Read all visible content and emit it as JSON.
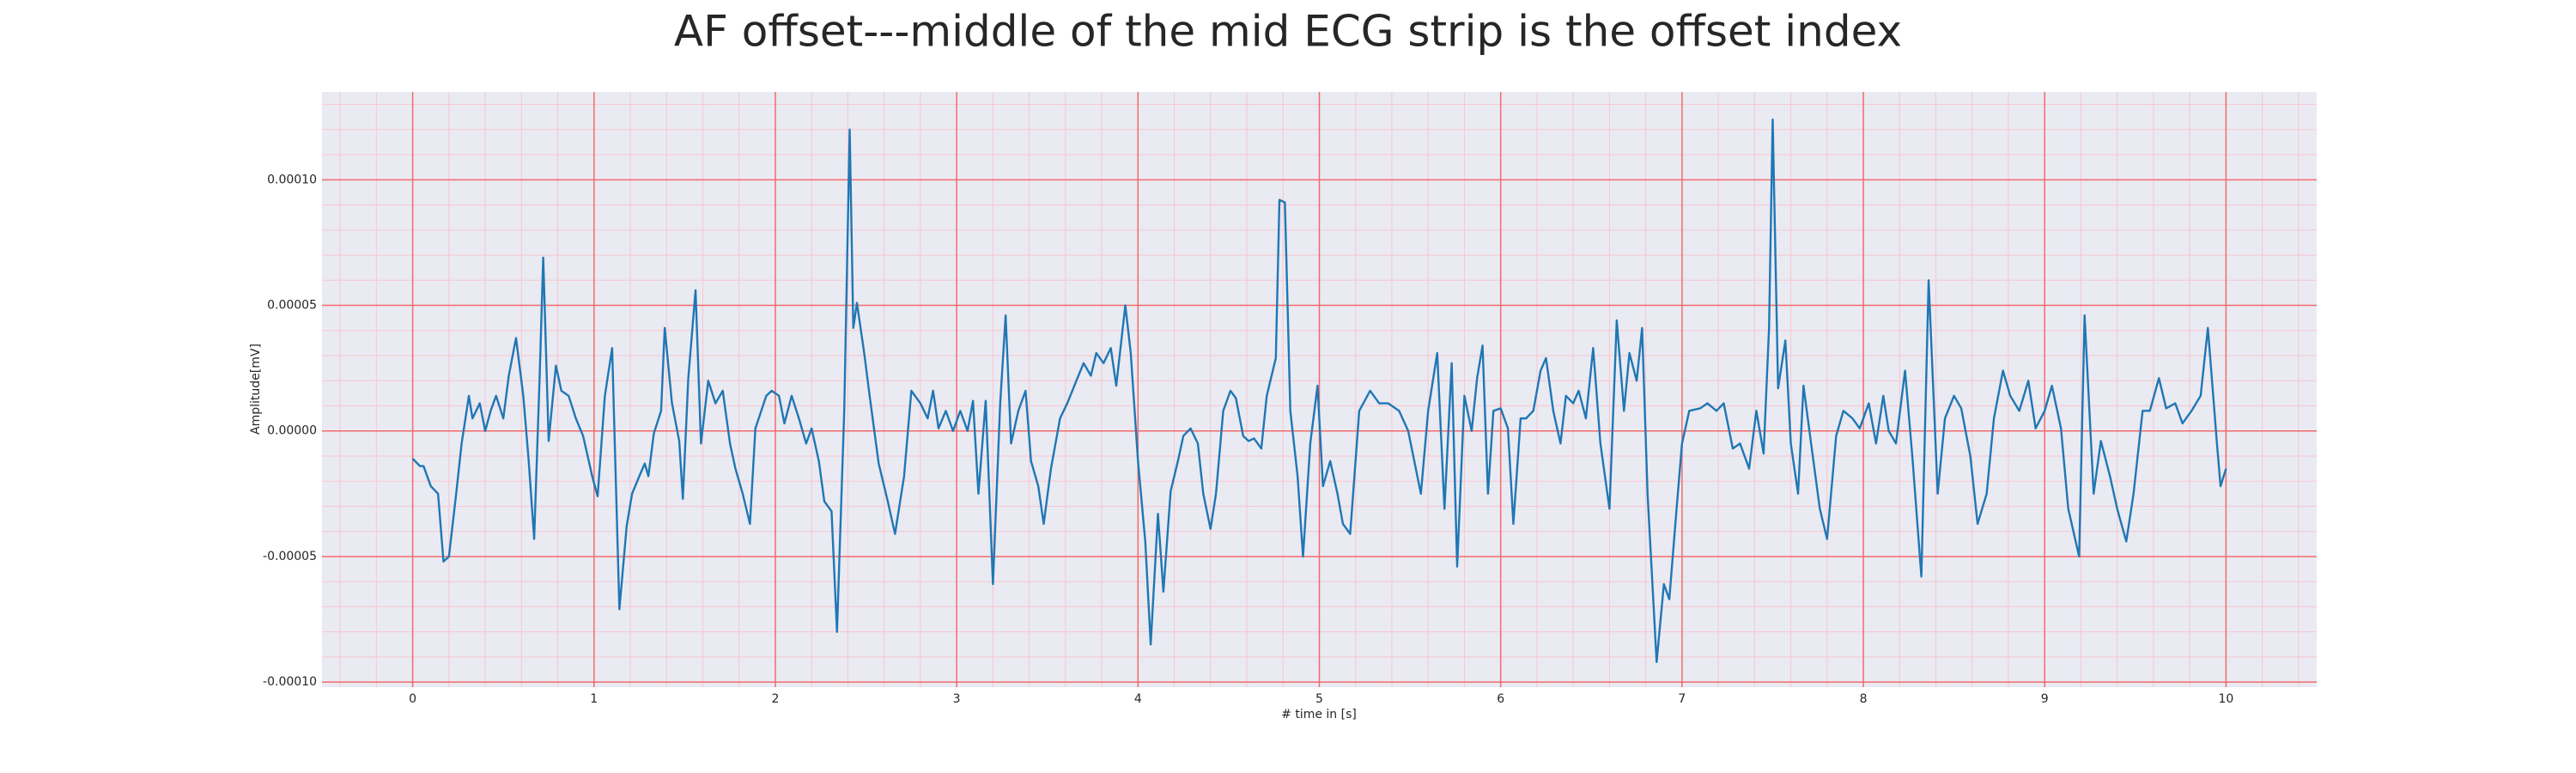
{
  "chart_data": {
    "type": "line",
    "title": "AF offset---middle of the mid ECG strip is the offset index",
    "x_label": "# time in [s]",
    "y_label": "Amplitude[mV]",
    "xlim": [
      -0.5,
      10.5
    ],
    "ylim": [
      -0.000102,
      0.000135
    ],
    "xticks": [
      0,
      1,
      2,
      3,
      4,
      5,
      6,
      7,
      8,
      9,
      10
    ],
    "yticks": [
      {
        "value": -0.0001,
        "label": "-0.00010"
      },
      {
        "value": -5e-05,
        "label": "-0.00005"
      },
      {
        "value": 0,
        "label": "0.00000"
      },
      {
        "value": 5e-05,
        "label": "0.00005"
      },
      {
        "value": 0.0001,
        "label": "0.00010"
      }
    ],
    "minor_xticks": [
      -0.4,
      -0.2,
      0.2,
      0.4,
      0.6,
      0.8,
      1.2,
      1.4,
      1.6,
      1.8,
      2.2,
      2.4,
      2.6,
      2.8,
      3.2,
      3.4,
      3.6,
      3.8,
      4.2,
      4.4,
      4.6,
      4.8,
      5.2,
      5.4,
      5.6,
      5.8,
      6.2,
      6.4,
      6.6,
      6.8,
      7.2,
      7.4,
      7.6,
      7.8,
      8.2,
      8.4,
      8.6,
      8.8,
      9.2,
      9.4,
      9.6,
      9.8,
      10.2,
      10.4
    ],
    "minor_yticks": [
      -9e-05,
      -8e-05,
      -7e-05,
      -6e-05,
      -4e-05,
      -3e-05,
      -2e-05,
      -1e-05,
      1e-05,
      2e-05,
      3e-05,
      4e-05,
      6e-05,
      7e-05,
      8e-05,
      9e-05,
      0.00011,
      0.00012,
      0.00013
    ],
    "grid": true,
    "background": "#eaeaf2",
    "grid_color": "#f26b6b",
    "minor_grid_color": "#f7c6cf",
    "x": [
      0,
      0.04,
      0.06,
      0.1,
      0.14,
      0.17,
      0.2,
      0.24,
      0.27,
      0.31,
      0.33,
      0.37,
      0.4,
      0.43,
      0.46,
      0.5,
      0.53,
      0.57,
      0.61,
      0.64,
      0.67,
      0.7,
      0.72,
      0.75,
      0.79,
      0.82,
      0.86,
      0.9,
      0.94,
      0.99,
      1.02,
      1.06,
      1.1,
      1.14,
      1.18,
      1.21,
      1.25,
      1.28,
      1.3,
      1.33,
      1.37,
      1.39,
      1.43,
      1.47,
      1.49,
      1.52,
      1.56,
      1.59,
      1.63,
      1.67,
      1.71,
      1.75,
      1.78,
      1.82,
      1.86,
      1.89,
      1.95,
      1.98,
      2.02,
      2.05,
      2.09,
      2.13,
      2.17,
      2.2,
      2.24,
      2.27,
      2.31,
      2.34,
      2.38,
      2.41,
      2.43,
      2.45,
      2.49,
      2.52,
      2.57,
      2.62,
      2.66,
      2.71,
      2.75,
      2.8,
      2.84,
      2.87,
      2.9,
      2.94,
      2.98,
      3.02,
      3.06,
      3.09,
      3.12,
      3.16,
      3.2,
      3.24,
      3.27,
      3.3,
      3.34,
      3.38,
      3.41,
      3.45,
      3.48,
      3.52,
      3.57,
      3.61,
      3.66,
      3.7,
      3.74,
      3.77,
      3.81,
      3.85,
      3.88,
      3.93,
      3.96,
      4.0,
      4.04,
      4.07,
      4.11,
      4.14,
      4.18,
      4.22,
      4.25,
      4.29,
      4.33,
      4.36,
      4.4,
      4.43,
      4.47,
      4.51,
      4.54,
      4.58,
      4.61,
      4.64,
      4.68,
      4.71,
      4.76,
      4.78,
      4.81,
      4.84,
      4.88,
      4.91,
      4.95,
      4.99,
      5.02,
      5.06,
      5.1,
      5.13,
      5.17,
      5.22,
      5.28,
      5.33,
      5.38,
      5.44,
      5.49,
      5.56,
      5.6,
      5.65,
      5.69,
      5.73,
      5.76,
      5.8,
      5.84,
      5.87,
      5.9,
      5.93,
      5.96,
      6.0,
      6.04,
      6.07,
      6.11,
      6.14,
      6.18,
      6.22,
      6.25,
      6.29,
      6.33,
      6.36,
      6.4,
      6.43,
      6.47,
      6.51,
      6.55,
      6.6,
      6.64,
      6.68,
      6.71,
      6.75,
      6.78,
      6.81,
      6.86,
      6.9,
      6.93,
      6.97,
      7.0,
      7.04,
      7.1,
      7.14,
      7.19,
      7.23,
      7.28,
      7.32,
      7.37,
      7.41,
      7.45,
      7.48,
      7.5,
      7.53,
      7.57,
      7.6,
      7.64,
      7.67,
      7.71,
      7.76,
      7.8,
      7.85,
      7.89,
      7.94,
      7.98,
      8.03,
      8.07,
      8.11,
      8.14,
      8.18,
      8.23,
      8.27,
      8.32,
      8.36,
      8.41,
      8.45,
      8.5,
      8.54,
      8.59,
      8.63,
      8.68,
      8.72,
      8.77,
      8.81,
      8.86,
      8.91,
      8.95,
      9.0,
      9.04,
      9.09,
      9.13,
      9.19,
      9.22,
      9.27,
      9.31,
      9.36,
      9.4,
      9.45,
      9.49,
      9.54,
      9.58,
      9.63,
      9.67,
      9.72,
      9.76,
      9.81,
      9.86,
      9.9,
      9.95,
      9.97,
      10.0
    ],
    "series": [
      {
        "name": "ECG",
        "color": "#1f77b4",
        "values": [
          -1.1e-05,
          -1.4e-05,
          -1.4e-05,
          -2.2e-05,
          -2.5e-05,
          -5.2e-05,
          -5e-05,
          -2.5e-05,
          -5e-06,
          1.4e-05,
          5e-06,
          1.1e-05,
          0,
          8e-06,
          1.4e-05,
          5e-06,
          2.2e-05,
          3.7e-05,
          1.4e-05,
          -1.2e-05,
          -4.3e-05,
          2.1e-05,
          6.9e-05,
          -4e-06,
          2.6e-05,
          1.6e-05,
          1.4e-05,
          5e-06,
          -2e-06,
          -1.8e-05,
          -2.6e-05,
          1.4e-05,
          3.3e-05,
          -7.1e-05,
          -3.8e-05,
          -2.5e-05,
          -1.8e-05,
          -1.3e-05,
          -1.8e-05,
          -1e-06,
          8e-06,
          4.1e-05,
          1.1e-05,
          -4e-06,
          -2.7e-05,
          2.1e-05,
          5.6e-05,
          -5e-06,
          2e-05,
          1.1e-05,
          1.6e-05,
          -5e-06,
          -1.5e-05,
          -2.5e-05,
          -3.7e-05,
          1e-06,
          1.4e-05,
          1.6e-05,
          1.4e-05,
          3e-06,
          1.4e-05,
          5e-06,
          -5e-06,
          1e-06,
          -1.2e-05,
          -2.8e-05,
          -3.2e-05,
          -8e-05,
          8e-06,
          0.00012,
          4.1e-05,
          5.1e-05,
          3.1e-05,
          1.4e-05,
          -1.3e-05,
          -2.8e-05,
          -4.1e-05,
          -1.8e-05,
          1.6e-05,
          1.1e-05,
          5e-06,
          1.6e-05,
          1e-06,
          8e-06,
          0,
          8e-06,
          0,
          1.2e-05,
          -2.5e-05,
          1.2e-05,
          -6.1e-05,
          1.1e-05,
          4.6e-05,
          -5e-06,
          8e-06,
          1.6e-05,
          -1.2e-05,
          -2.2e-05,
          -3.7e-05,
          -1.5e-05,
          5e-06,
          1.1e-05,
          2e-05,
          2.7e-05,
          2.2e-05,
          3.1e-05,
          2.7e-05,
          3.3e-05,
          1.8e-05,
          5e-05,
          3.1e-05,
          -1.2e-05,
          -4.4e-05,
          -8.5e-05,
          -3.3e-05,
          -6.4e-05,
          -2.4e-05,
          -1.2e-05,
          -2e-06,
          1e-06,
          -5e-06,
          -2.5e-05,
          -3.9e-05,
          -2.5e-05,
          8e-06,
          1.6e-05,
          1.3e-05,
          -2e-06,
          -4e-06,
          -3e-06,
          -7e-06,
          1.4e-05,
          2.9e-05,
          9.2e-05,
          9.1e-05,
          8e-06,
          -1.8e-05,
          -5e-05,
          -5e-06,
          1.8e-05,
          -2.2e-05,
          -1.2e-05,
          -2.5e-05,
          -3.7e-05,
          -4.1e-05,
          8e-06,
          1.6e-05,
          1.1e-05,
          1.1e-05,
          8e-06,
          0,
          -2.5e-05,
          8e-06,
          3.1e-05,
          -3.1e-05,
          2.7e-05,
          -5.4e-05,
          1.4e-05,
          0,
          2.1e-05,
          3.4e-05,
          -2.5e-05,
          8e-06,
          9e-06,
          1e-06,
          -3.7e-05,
          5e-06,
          5e-06,
          8e-06,
          2.4e-05,
          2.9e-05,
          8e-06,
          -5e-06,
          1.4e-05,
          1.1e-05,
          1.6e-05,
          5e-06,
          3.3e-05,
          -5e-06,
          -3.1e-05,
          4.4e-05,
          8e-06,
          3.1e-05,
          2e-05,
          4.1e-05,
          -2.5e-05,
          -9.2e-05,
          -6.1e-05,
          -6.7e-05,
          -3.1e-05,
          -5e-06,
          8e-06,
          9e-06,
          1.1e-05,
          8e-06,
          1.1e-05,
          -7e-06,
          -5e-06,
          -1.5e-05,
          8e-06,
          -9e-06,
          4.1e-05,
          0.000124,
          1.7e-05,
          3.6e-05,
          -5e-06,
          -2.5e-05,
          1.8e-05,
          -4e-06,
          -3.1e-05,
          -4.3e-05,
          -2e-06,
          8e-06,
          5e-06,
          1e-06,
          1.1e-05,
          -5e-06,
          1.4e-05,
          0,
          -5e-06,
          2.4e-05,
          -1e-05,
          -5.8e-05,
          6e-05,
          -2.5e-05,
          5e-06,
          1.4e-05,
          9e-06,
          -1e-05,
          -3.7e-05,
          -2.5e-05,
          5e-06,
          2.4e-05,
          1.4e-05,
          8e-06,
          2e-05,
          1e-06,
          8e-06,
          1.8e-05,
          1e-06,
          -3.1e-05,
          -5e-05,
          4.6e-05,
          -2.5e-05,
          -4e-06,
          -1.8e-05,
          -3.1e-05,
          -4.4e-05,
          -2.5e-05,
          8e-06,
          8e-06,
          2.1e-05,
          9e-06,
          1.1e-05,
          3e-06,
          8e-06,
          1.4e-05,
          4.1e-05,
          -5e-06,
          -2.2e-05,
          -1.5e-05
        ]
      }
    ]
  }
}
